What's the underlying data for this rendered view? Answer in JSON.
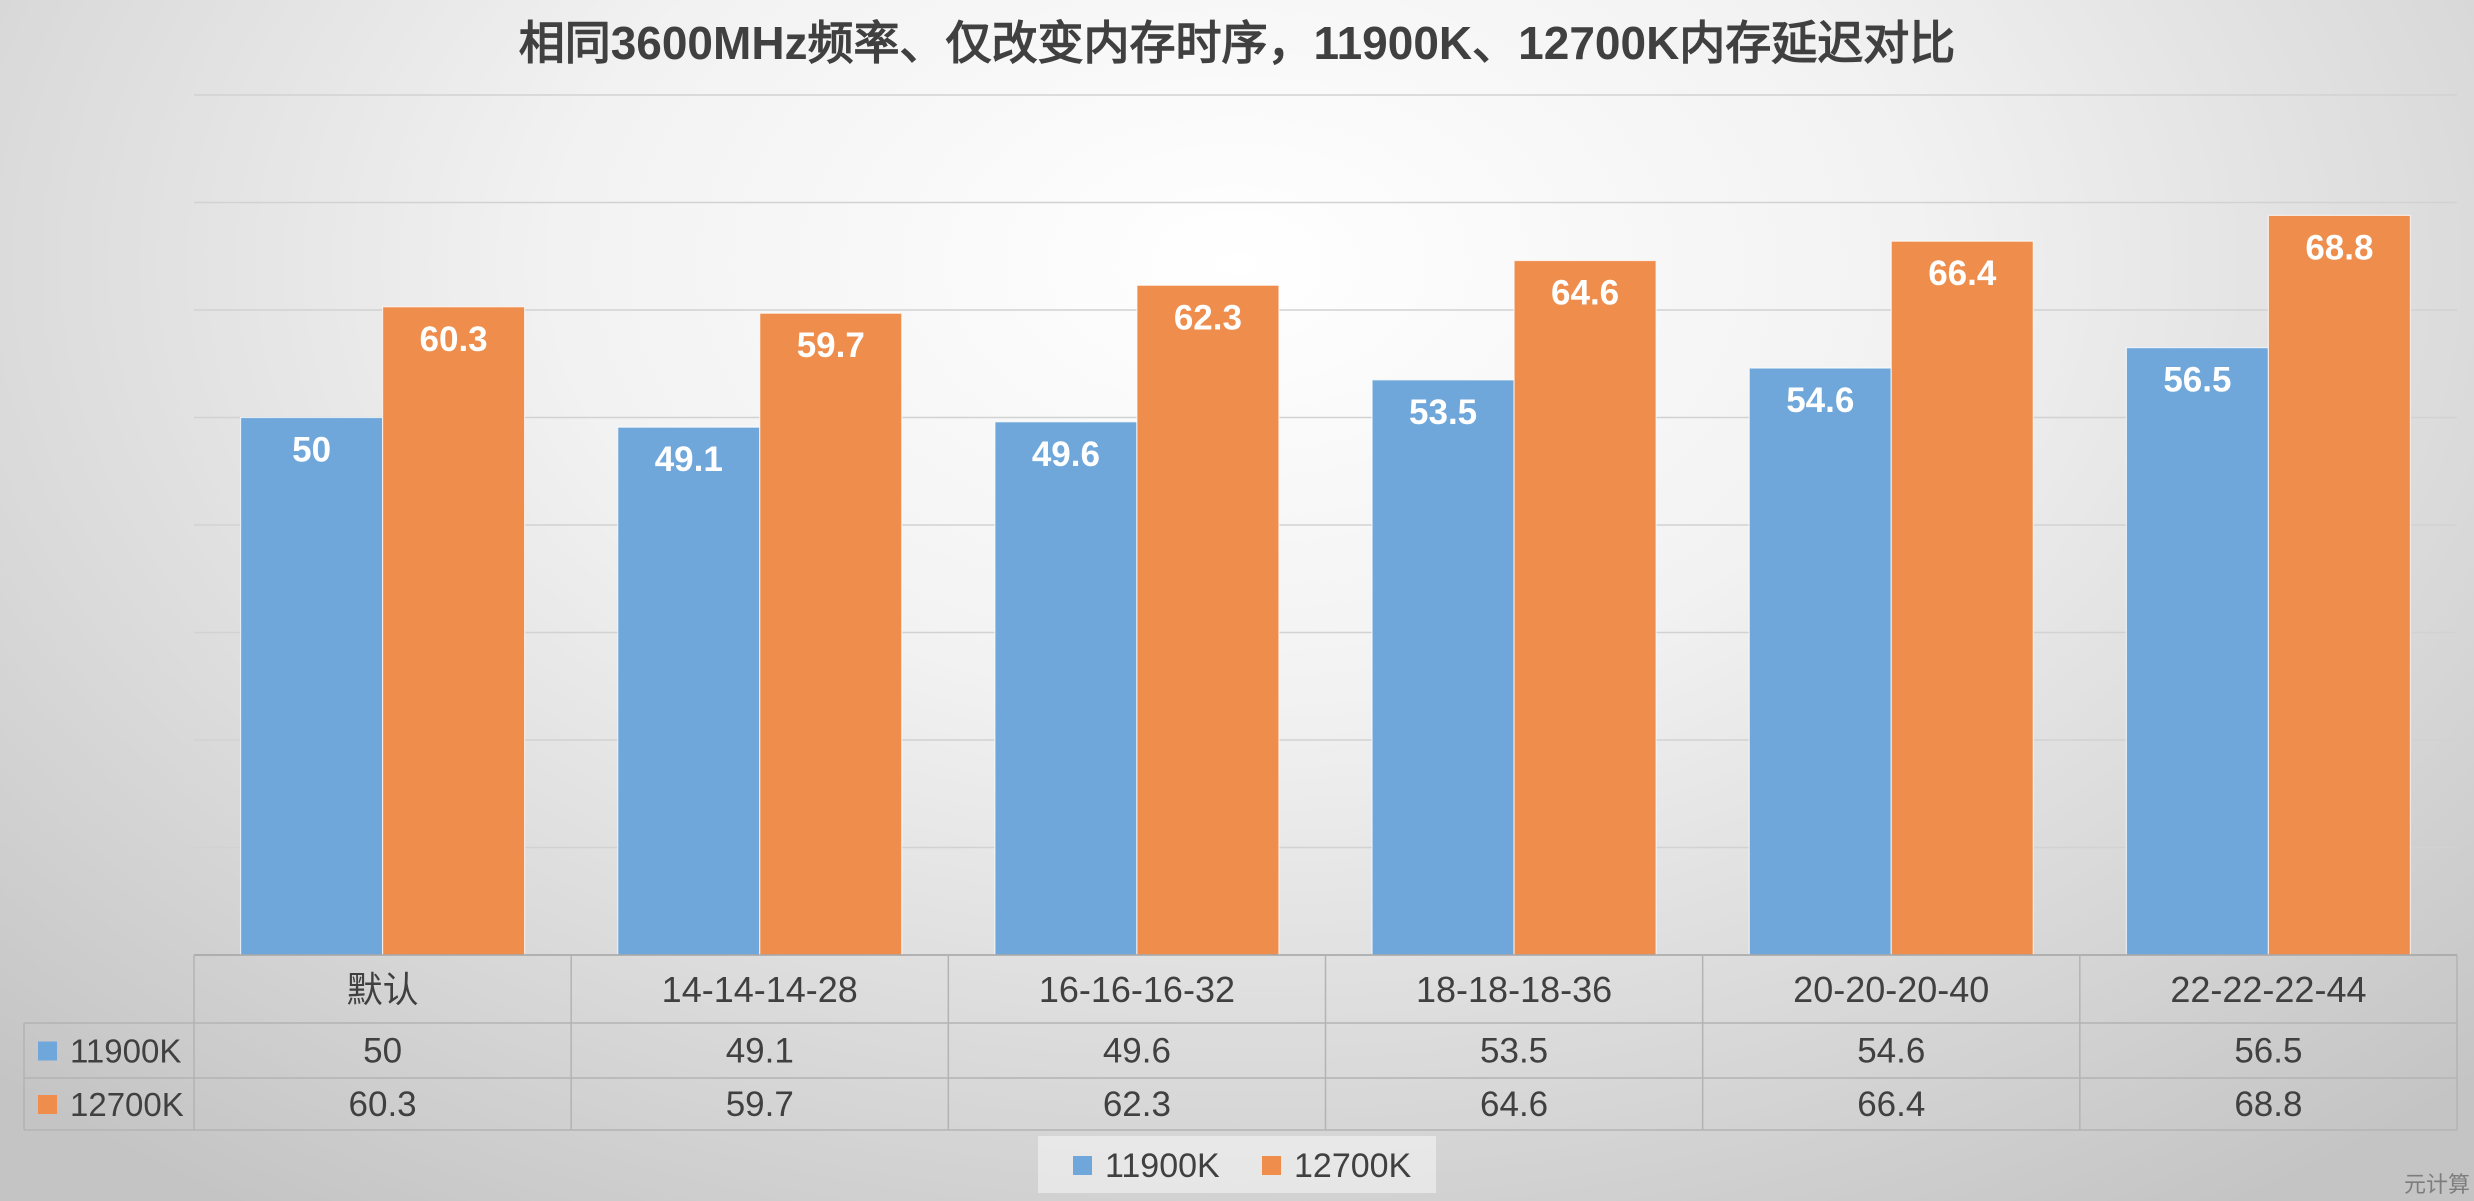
{
  "chart_data": {
    "type": "bar",
    "title": "相同3600MHz频率、仅改变内存时序，11900K、12700K内存延迟对比",
    "xlabel": "",
    "ylabel": "",
    "categories": [
      "默认",
      "14-14-14-28",
      "16-16-16-32",
      "18-18-18-36",
      "20-20-20-40",
      "22-22-22-44"
    ],
    "series": [
      {
        "name": "11900K",
        "color": "#6FA7DB",
        "values": [
          50,
          49.1,
          49.6,
          53.5,
          54.6,
          56.5
        ]
      },
      {
        "name": "12700K",
        "color": "#EE8D4C",
        "values": [
          60.3,
          59.7,
          62.3,
          64.6,
          66.4,
          68.8
        ]
      }
    ],
    "ylim": [
      0,
      80
    ],
    "y_major_unit": 10,
    "grid": true,
    "data_labels": true,
    "data_table": true,
    "legend": "bottom"
  },
  "watermark": "元计算"
}
